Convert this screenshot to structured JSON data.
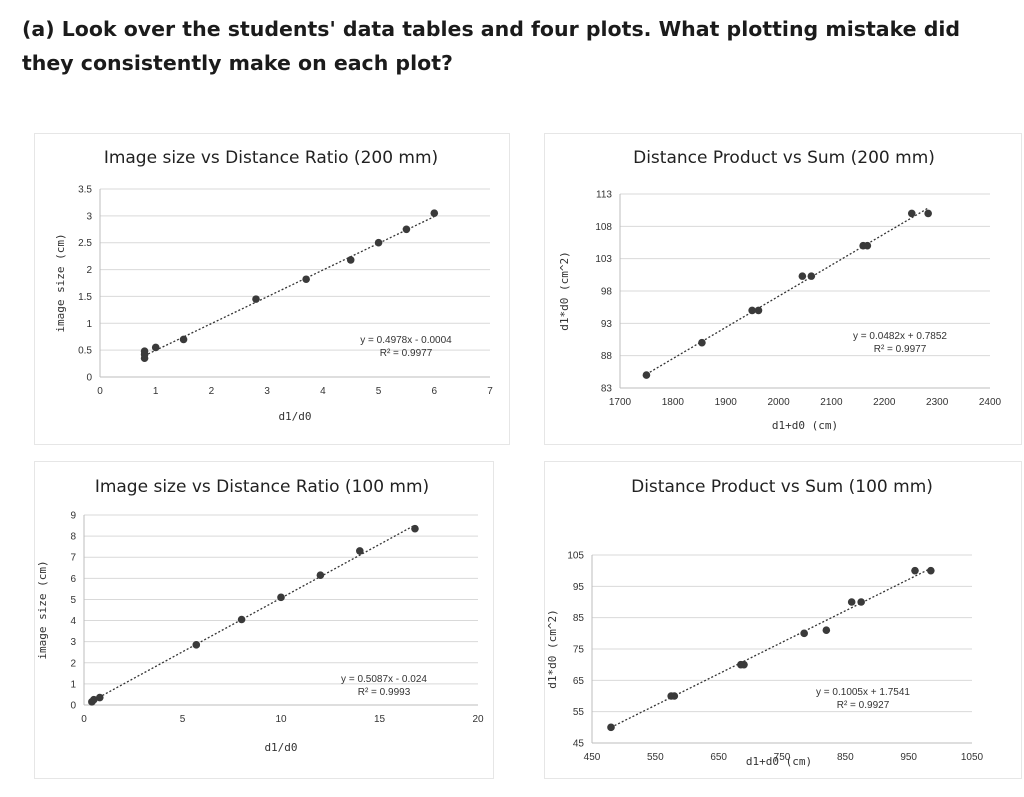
{
  "question": "(a) Look over the students' data tables and four plots. What plotting mistake did they consistently make on each plot?",
  "chart_data": [
    {
      "type": "scatter",
      "title": "Image size vs Distance Ratio (200 mm)",
      "xlabel": "d1/d0",
      "ylabel": "image size (cm)",
      "xlim": [
        0,
        7
      ],
      "ylim": [
        0,
        3.5
      ],
      "xticks": [
        "0",
        "1",
        "2",
        "3",
        "4",
        "5",
        "6",
        "7"
      ],
      "yticks": [
        "0",
        "0.5",
        "1",
        "1.5",
        "2",
        "2.5",
        "3",
        "3.5"
      ],
      "x": [
        0.8,
        0.8,
        0.8,
        1.0,
        1.5,
        2.8,
        3.7,
        4.5,
        5.0,
        5.5,
        6.0
      ],
      "y": [
        0.35,
        0.42,
        0.48,
        0.55,
        0.7,
        1.45,
        1.82,
        2.18,
        2.5,
        2.75,
        3.05
      ],
      "trendline": {
        "slope": 0.4978,
        "intercept": -0.0004,
        "x_range": [
          0.8,
          6.0
        ]
      },
      "equation": "y = 0.4978x - 0.0004",
      "r_squared": "R² = 0.9977"
    },
    {
      "type": "scatter",
      "title": "Distance Product vs Sum (200 mm)",
      "xlabel": "d1+d0 (cm)",
      "ylabel": "d1*d0 (cm^2)",
      "xlim": [
        1700,
        2400
      ],
      "ylim": [
        83,
        113
      ],
      "xticks": [
        "1700",
        "1800",
        "1900",
        "2000",
        "2100",
        "2200",
        "2300",
        "2400"
      ],
      "yticks": [
        "83",
        "88",
        "93",
        "98",
        "103",
        "108",
        "113"
      ],
      "x": [
        1750,
        1855,
        1950,
        1962,
        2045,
        2062,
        2160,
        2168,
        2252,
        2283
      ],
      "y": [
        85.0,
        90.0,
        95.0,
        95.0,
        100.3,
        100.3,
        105.0,
        105.0,
        110.0,
        110.0
      ],
      "trendline": {
        "slope": 0.0482,
        "intercept": 0.7852,
        "x_range": [
          1750,
          2283
        ]
      },
      "equation": "y = 0.0482x + 0.7852",
      "r_squared": "R² = 0.9977"
    },
    {
      "type": "scatter",
      "title": "Image size vs Distance Ratio (100 mm)",
      "xlabel": "d1/d0",
      "ylabel": "image size (cm)",
      "xlim": [
        0,
        20
      ],
      "ylim": [
        0,
        9
      ],
      "xticks": [
        "0",
        "5",
        "10",
        "15",
        "20"
      ],
      "yticks": [
        "0",
        "1",
        "2",
        "3",
        "4",
        "5",
        "6",
        "7",
        "8",
        "9"
      ],
      "x": [
        0.4,
        0.5,
        0.8,
        5.7,
        8.0,
        10.0,
        12.0,
        14.0,
        16.8
      ],
      "y": [
        0.15,
        0.25,
        0.35,
        2.85,
        4.05,
        5.1,
        6.15,
        7.3,
        8.35
      ],
      "trendline": {
        "slope": 0.5087,
        "intercept": -0.024,
        "x_range": [
          0.4,
          16.8
        ]
      },
      "equation": "y = 0.5087x - 0.024",
      "r_squared": "R² = 0.9993"
    },
    {
      "type": "scatter",
      "title": "Distance Product vs Sum (100 mm)",
      "xlabel": "d1+d0 (cm)",
      "ylabel": "d1*d0 (cm^2)",
      "xlim": [
        450,
        1050
      ],
      "ylim": [
        45,
        105
      ],
      "xticks": [
        "450",
        "550",
        "650",
        "750",
        "850",
        "950",
        "1050"
      ],
      "yticks": [
        "45",
        "55",
        "65",
        "75",
        "85",
        "95",
        "105"
      ],
      "x": [
        480,
        575,
        580,
        685,
        690,
        785,
        820,
        860,
        875,
        960,
        985
      ],
      "y": [
        50,
        60,
        60,
        70,
        70,
        80,
        81,
        90,
        90,
        100,
        100
      ],
      "trendline": {
        "slope": 0.1005,
        "intercept": 1.7541,
        "x_range": [
          480,
          985
        ]
      },
      "equation": "y = 0.1005x + 1.7541",
      "r_squared": "R² = 0.9927"
    }
  ]
}
